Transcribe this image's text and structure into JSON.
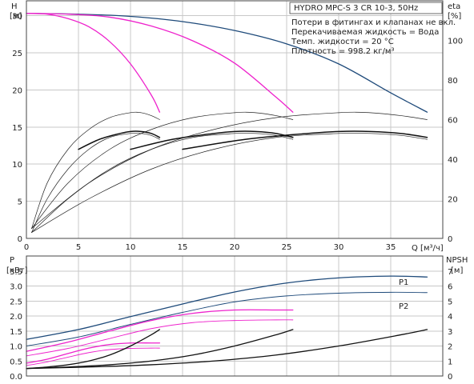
{
  "chart_data": [
    {
      "type": "line",
      "title": "HYDRO MPC-S 3 CR 10-3, 50Hz",
      "notes": [
        "Потери в фитингах и клапанах не вкл.",
        "Перекачиваемая жидкость = Вода",
        "Темп. жидкости = 20 °C",
        "Плотность = 998.2 кг/м³"
      ],
      "xlabel": "Q [м³/ч]",
      "ylabel": {
        "symbol": "H",
        "unit": "[м]"
      },
      "y2label": {
        "symbol": "eta",
        "unit": "[%]"
      },
      "xlim": [
        0,
        40
      ],
      "ylim": [
        0,
        32
      ],
      "y2lim": [
        0,
        120
      ],
      "xticks": [
        "0",
        "5",
        "10",
        "15",
        "20",
        "25",
        "30",
        "35"
      ],
      "xtick_values": [
        0,
        5,
        10,
        15,
        20,
        25,
        30,
        35
      ],
      "yticks": [
        "0",
        "5",
        "10",
        "15",
        "20",
        "25",
        "30"
      ],
      "ytick_values": [
        0,
        5,
        10,
        15,
        20,
        25,
        30
      ],
      "y2ticks": [
        "0",
        "20",
        "40",
        "60",
        "80",
        "100"
      ],
      "y2tick_values": [
        0,
        20,
        40,
        60,
        80,
        100
      ],
      "grid": true,
      "series": [
        {
          "group": "head",
          "color": "#1e4a7a",
          "width": 1.3,
          "x": [
            0,
            5,
            10,
            15,
            20,
            25,
            30,
            35,
            38.5
          ],
          "values": [
            30.3,
            30.2,
            29.9,
            29.2,
            28.0,
            26.2,
            23.5,
            19.6,
            17.0
          ]
        },
        {
          "group": "head",
          "color": "#ee22cc",
          "width": 1.3,
          "x": [
            0,
            4,
            8,
            12,
            16,
            20,
            24,
            25.6
          ],
          "values": [
            30.3,
            30.2,
            29.8,
            28.6,
            26.6,
            23.6,
            19.0,
            17.0
          ]
        },
        {
          "group": "head",
          "color": "#ee22cc",
          "width": 1.3,
          "x": [
            0,
            2,
            4,
            6,
            8,
            10,
            12,
            12.8
          ],
          "values": [
            30.3,
            30.2,
            29.6,
            28.5,
            26.5,
            23.5,
            19.3,
            17.0
          ]
        },
        {
          "group": "eta",
          "axis": "y2",
          "color": "#222222",
          "width": 0.7,
          "x": [
            0.5,
            2,
            4,
            6,
            8,
            10,
            11,
            12,
            12.8
          ],
          "values": [
            5,
            28,
            45,
            55,
            61,
            63.5,
            63.5,
            62,
            60
          ]
        },
        {
          "group": "eta",
          "axis": "y2",
          "color": "#222222",
          "width": 0.7,
          "x": [
            0.5,
            4,
            8,
            12,
            16,
            20,
            22,
            24,
            25.6
          ],
          "values": [
            5,
            28,
            45,
            55,
            61,
            63.5,
            63.5,
            62,
            60
          ]
        },
        {
          "group": "eta",
          "axis": "y2",
          "color": "#222222",
          "width": 0.7,
          "x": [
            0.5,
            6,
            12,
            18,
            24,
            30,
            33,
            36,
            38.5
          ],
          "values": [
            5,
            28,
            45,
            55,
            61,
            63.5,
            63.5,
            62,
            60
          ]
        },
        {
          "group": "eta",
          "axis": "y2",
          "color": "#222222",
          "width": 0.7,
          "x": [
            0.5,
            2,
            4,
            6,
            8,
            10,
            11,
            12,
            12.8
          ],
          "values": [
            3,
            20,
            35,
            45,
            51,
            53,
            53,
            52,
            50
          ]
        },
        {
          "group": "eta",
          "axis": "y2",
          "color": "#222222",
          "width": 0.7,
          "x": [
            0.5,
            4,
            8,
            12,
            16,
            20,
            22,
            24,
            25.6
          ],
          "values": [
            3,
            20,
            35,
            45,
            51,
            53,
            53,
            52,
            50
          ]
        },
        {
          "group": "eta",
          "axis": "y2",
          "color": "#222222",
          "width": 0.7,
          "x": [
            0.5,
            6,
            12,
            18,
            24,
            30,
            33,
            36,
            38.5
          ],
          "values": [
            3,
            20,
            35,
            45,
            51,
            53,
            53,
            52,
            50
          ]
        },
        {
          "group": "eta",
          "axis": "y2",
          "color": "#111111",
          "width": 1.5,
          "x": [
            5,
            7,
            9,
            10,
            11,
            12,
            12.8
          ],
          "values": [
            45,
            50,
            53,
            54,
            54,
            53,
            51
          ]
        },
        {
          "group": "eta",
          "axis": "y2",
          "color": "#111111",
          "width": 1.5,
          "x": [
            10,
            14,
            18,
            20,
            22,
            24,
            25.6
          ],
          "values": [
            45,
            50,
            53,
            54,
            54,
            53,
            51
          ]
        },
        {
          "group": "eta",
          "axis": "y2",
          "color": "#111111",
          "width": 1.5,
          "x": [
            15,
            21,
            27,
            30,
            33,
            36,
            38.5
          ],
          "values": [
            45,
            50,
            53,
            54,
            54,
            53,
            51
          ]
        }
      ]
    },
    {
      "type": "line",
      "xlim": [
        0,
        40
      ],
      "ylabel": {
        "symbol": "P",
        "unit": "[кВт]"
      },
      "y2label": {
        "symbol": "NPSH",
        "unit": "[м]"
      },
      "ylim": [
        0,
        4.0
      ],
      "y2lim": [
        0,
        8
      ],
      "xticks": [
        0,
        5,
        10,
        15,
        20,
        25,
        30,
        35
      ],
      "yticks": [
        "0.0",
        "0.5",
        "1.0",
        "1.5",
        "2.0",
        "2.5",
        "3.0",
        "3.5"
      ],
      "ytick_values": [
        0,
        0.5,
        1.0,
        1.5,
        2.0,
        2.5,
        3.0,
        3.5
      ],
      "y2ticks": [
        "0",
        "1",
        "2",
        "3",
        "4",
        "5",
        "6",
        "7"
      ],
      "y2tick_values": [
        0,
        1,
        2,
        3,
        4,
        5,
        6,
        7
      ],
      "grid": true,
      "series_labels": [
        "P1",
        "P2"
      ],
      "series": [
        {
          "name": "P1",
          "color": "#1e4a7a",
          "width": 1.3,
          "x": [
            0,
            5,
            10,
            15,
            20,
            25,
            30,
            35,
            38.5
          ],
          "values": [
            1.22,
            1.55,
            1.98,
            2.4,
            2.8,
            3.1,
            3.27,
            3.33,
            3.3
          ]
        },
        {
          "name": "P2",
          "color": "#1e4a7a",
          "width": 0.9,
          "x": [
            0,
            5,
            10,
            15,
            20,
            25,
            30,
            35,
            38.5
          ],
          "values": [
            1.0,
            1.3,
            1.72,
            2.12,
            2.47,
            2.67,
            2.76,
            2.79,
            2.78
          ]
        },
        {
          "color": "#ee22cc",
          "width": 1.3,
          "x": [
            0,
            4,
            8,
            12,
            16,
            20,
            24,
            25.6
          ],
          "values": [
            0.82,
            1.13,
            1.5,
            1.85,
            2.09,
            2.2,
            2.2,
            2.2
          ]
        },
        {
          "color": "#ee22cc",
          "width": 0.9,
          "x": [
            0,
            4,
            8,
            12,
            16,
            20,
            24,
            25.6
          ],
          "values": [
            0.67,
            0.92,
            1.25,
            1.58,
            1.78,
            1.85,
            1.87,
            1.87
          ]
        },
        {
          "color": "#ee22cc",
          "width": 1.3,
          "x": [
            0,
            2,
            4,
            6,
            8,
            10,
            12,
            12.8
          ],
          "values": [
            0.43,
            0.56,
            0.75,
            0.93,
            1.05,
            1.1,
            1.1,
            1.1
          ]
        },
        {
          "color": "#ee22cc",
          "width": 0.9,
          "x": [
            0,
            2,
            4,
            6,
            8,
            10,
            12,
            12.8
          ],
          "values": [
            0.35,
            0.47,
            0.63,
            0.78,
            0.88,
            0.92,
            0.93,
            0.93
          ]
        },
        {
          "axis": "y2",
          "color": "#111111",
          "width": 1.3,
          "x": [
            0,
            2,
            4,
            6,
            8,
            10,
            12,
            12.8
          ],
          "values": [
            0.5,
            0.6,
            0.75,
            1.0,
            1.4,
            2.0,
            2.75,
            3.1
          ]
        },
        {
          "axis": "y2",
          "color": "#111111",
          "width": 1.3,
          "x": [
            0,
            4,
            8,
            12,
            16,
            20,
            24,
            25.6
          ],
          "values": [
            0.5,
            0.6,
            0.75,
            1.0,
            1.4,
            2.0,
            2.75,
            3.1
          ]
        },
        {
          "axis": "y2",
          "color": "#111111",
          "width": 1.3,
          "x": [
            0,
            6,
            12,
            18,
            24,
            30,
            36,
            38.5
          ],
          "values": [
            0.5,
            0.6,
            0.75,
            1.0,
            1.4,
            2.0,
            2.75,
            3.1
          ]
        }
      ]
    }
  ]
}
